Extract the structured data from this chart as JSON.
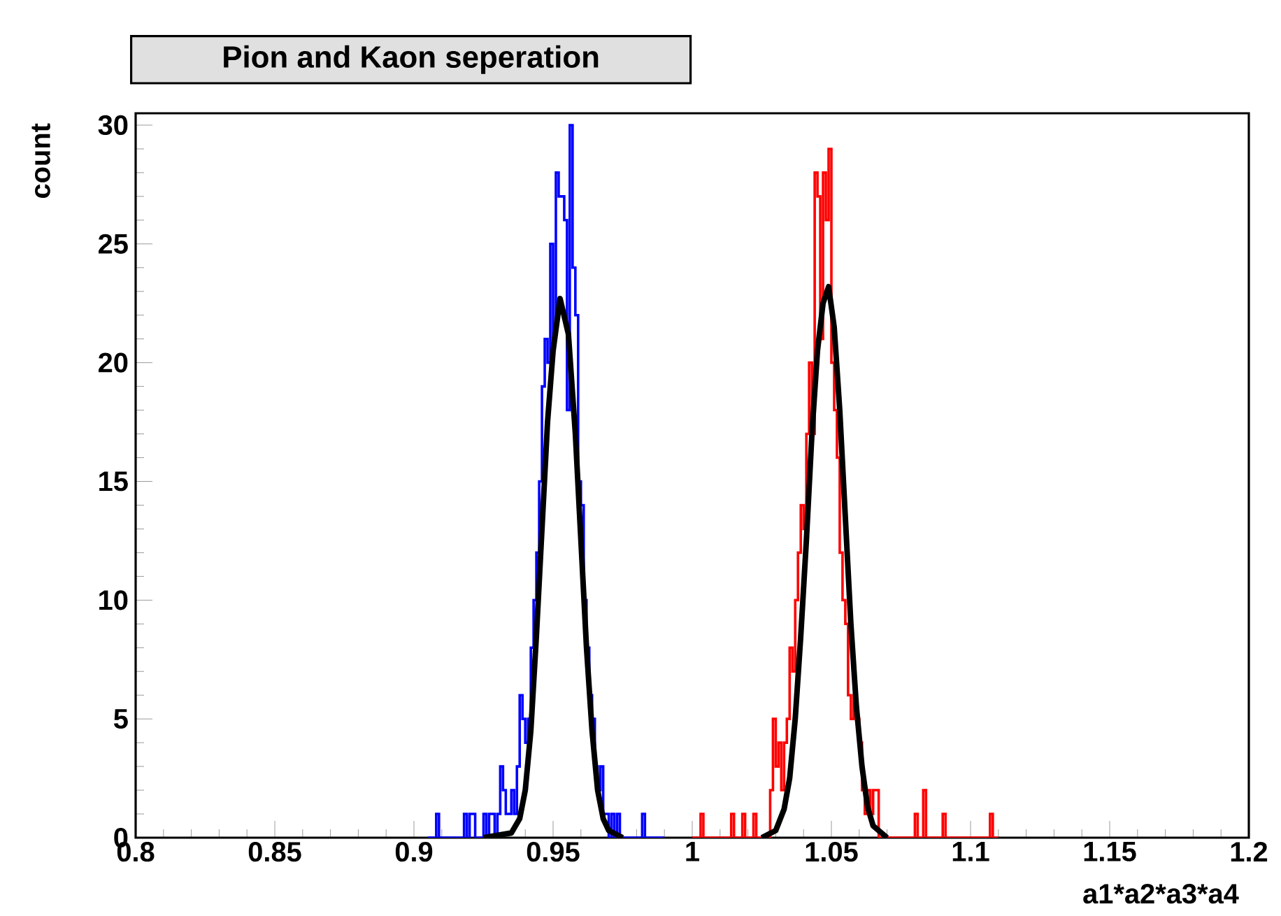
{
  "chart_data": {
    "type": "histogram",
    "title": "Pion and Kaon seperation",
    "xlabel": "a1*a2*a3*a4",
    "ylabel": "count",
    "xlim": [
      0.8,
      1.2
    ],
    "ylim": [
      0,
      30.5
    ],
    "xticks": [
      0.8,
      0.85,
      0.9,
      0.95,
      1,
      1.05,
      1.1,
      1.15,
      1.2
    ],
    "yticks": [
      0,
      5,
      10,
      15,
      20,
      25,
      30
    ],
    "grid": false,
    "marker": "none",
    "series": [
      {
        "color": "#0000ff",
        "bins": [
          0.905,
          0.906,
          0.907,
          0.908,
          0.909,
          0.91,
          0.911,
          0.912,
          0.913,
          0.914,
          0.915,
          0.916,
          0.917,
          0.918,
          0.919,
          0.92,
          0.921,
          0.922,
          0.923,
          0.924,
          0.925,
          0.926,
          0.927,
          0.928,
          0.929,
          0.93,
          0.931,
          0.932,
          0.933,
          0.934,
          0.935,
          0.936,
          0.937,
          0.938,
          0.939,
          0.94,
          0.941,
          0.942,
          0.943,
          0.944,
          0.945,
          0.946,
          0.947,
          0.948,
          0.949,
          0.95,
          0.951,
          0.952,
          0.953,
          0.954,
          0.955,
          0.956,
          0.957,
          0.958,
          0.959,
          0.96,
          0.961,
          0.962,
          0.963,
          0.964,
          0.965,
          0.966,
          0.967,
          0.968,
          0.969,
          0.97,
          0.971,
          0.972,
          0.973,
          0.974,
          0.975,
          0.976,
          0.977,
          0.978,
          0.979,
          0.98,
          0.981,
          0.982,
          0.983,
          0.984,
          0.985,
          0.986,
          0.987,
          0.988,
          0.989,
          0.99
        ],
        "values": [
          0,
          0,
          0,
          1,
          0,
          0,
          0,
          0,
          0,
          0,
          0,
          0,
          0,
          1,
          0,
          1,
          1,
          0,
          0,
          0,
          1,
          0,
          1,
          1,
          0,
          1,
          3,
          2,
          1,
          1,
          2,
          1,
          3,
          6,
          5,
          4,
          5,
          8,
          10,
          12,
          15,
          19,
          21,
          20,
          25,
          21,
          28,
          27,
          27,
          26,
          18,
          30,
          24,
          22,
          15,
          14,
          10,
          8,
          6,
          5,
          3,
          2,
          3,
          1,
          1,
          0,
          1,
          0,
          1,
          0,
          0,
          0,
          0,
          0,
          0,
          0,
          0,
          1,
          0,
          0,
          0,
          0,
          0,
          0,
          0
        ]
      },
      {
        "color": "#ff0000",
        "bins": [
          1.0,
          1.001,
          1.002,
          1.003,
          1.004,
          1.005,
          1.006,
          1.007,
          1.008,
          1.009,
          1.01,
          1.011,
          1.012,
          1.013,
          1.014,
          1.015,
          1.016,
          1.017,
          1.018,
          1.019,
          1.02,
          1.021,
          1.022,
          1.023,
          1.024,
          1.025,
          1.026,
          1.027,
          1.028,
          1.029,
          1.03,
          1.031,
          1.032,
          1.033,
          1.034,
          1.035,
          1.036,
          1.037,
          1.038,
          1.039,
          1.04,
          1.041,
          1.042,
          1.043,
          1.044,
          1.045,
          1.046,
          1.047,
          1.048,
          1.049,
          1.05,
          1.051,
          1.052,
          1.053,
          1.054,
          1.055,
          1.056,
          1.057,
          1.058,
          1.059,
          1.06,
          1.061,
          1.062,
          1.063,
          1.064,
          1.065,
          1.066,
          1.067,
          1.068,
          1.069,
          1.07,
          1.071,
          1.072,
          1.073,
          1.074,
          1.075,
          1.076,
          1.077,
          1.078,
          1.079,
          1.08,
          1.081,
          1.082,
          1.083,
          1.084,
          1.085,
          1.086,
          1.087,
          1.088,
          1.089,
          1.09,
          1.091,
          1.092,
          1.093,
          1.094,
          1.095,
          1.096,
          1.097,
          1.098,
          1.099,
          1.1,
          1.101,
          1.102,
          1.103,
          1.104,
          1.105,
          1.106,
          1.107,
          1.108,
          1.109,
          1.11
        ],
        "values": [
          0,
          0,
          0,
          1,
          0,
          0,
          0,
          0,
          0,
          0,
          0,
          0,
          0,
          0,
          1,
          0,
          0,
          0,
          1,
          0,
          0,
          0,
          1,
          0,
          0,
          0,
          0,
          0,
          2,
          5,
          3,
          4,
          2,
          4,
          5,
          8,
          7,
          10,
          12,
          14,
          13,
          17,
          20,
          17,
          28,
          27,
          21,
          28,
          26,
          29,
          20,
          18,
          16,
          12,
          10,
          9,
          6,
          5,
          6,
          5,
          4,
          2,
          1,
          2,
          1,
          2,
          2,
          0,
          0,
          0,
          0,
          0,
          0,
          0,
          0,
          0,
          0,
          0,
          0,
          0,
          1,
          0,
          0,
          2,
          0,
          0,
          0,
          0,
          0,
          0,
          1,
          0,
          0,
          0,
          0,
          0,
          0,
          0,
          0,
          0,
          0,
          0,
          0,
          0,
          0,
          0,
          0,
          1,
          0,
          0
        ]
      },
      {
        "type": "line",
        "color": "#000000",
        "x": [
          0.925,
          0.935,
          0.938,
          0.94,
          0.942,
          0.944,
          0.946,
          0.948,
          0.95,
          0.9525,
          0.9555,
          0.958,
          0.96,
          0.962,
          0.964,
          0.966,
          0.968,
          0.97,
          0.975
        ],
        "values": [
          0,
          0.2,
          0.8,
          2,
          4.5,
          8.5,
          13,
          17.5,
          20.5,
          22.7,
          21.2,
          17,
          12.5,
          8,
          4.5,
          2,
          0.8,
          0.3,
          0
        ]
      },
      {
        "type": "line",
        "color": "#000000",
        "x": [
          1.025,
          1.03,
          1.033,
          1.035,
          1.037,
          1.039,
          1.041,
          1.043,
          1.045,
          1.047,
          1.049,
          1.051,
          1.053,
          1.055,
          1.057,
          1.059,
          1.061,
          1.063,
          1.065,
          1.07
        ],
        "values": [
          0,
          0.3,
          1.2,
          2.5,
          5,
          8.5,
          12.5,
          17,
          20.5,
          22.5,
          23.2,
          21.5,
          18,
          13.5,
          9,
          5.5,
          3,
          1.3,
          0.5,
          0
        ]
      }
    ]
  }
}
